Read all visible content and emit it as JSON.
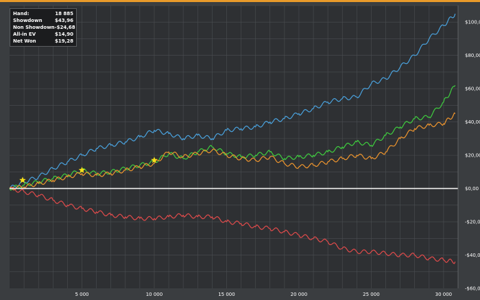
{
  "colors": {
    "background": "#3a3d40",
    "plot_background": "#2e3033",
    "grid": "#4b4e52",
    "top_border": "#e89a2a",
    "zero_line": "#f2f2f2",
    "net_won": "#4aa3df",
    "showdown": "#3fcf3f",
    "allin_ev": "#f0962e",
    "non_showdown": "#e24b4b",
    "star": "#f7e018"
  },
  "stats": [
    {
      "label": "Hand:",
      "value": "18 885"
    },
    {
      "label": "Showdown",
      "value": "$43,96"
    },
    {
      "label": "Non Showdown",
      "value": "-$24,68"
    },
    {
      "label": "All-in EV",
      "value": "$14,90"
    },
    {
      "label": "Net Won",
      "value": "$19,28"
    }
  ],
  "chart_data": {
    "type": "line",
    "xlim": [
      0,
      31000
    ],
    "ylim": [
      -60,
      110
    ],
    "x_ticks": [
      5000,
      10000,
      15000,
      20000,
      25000,
      30000
    ],
    "x_tick_labels": [
      "5 000",
      "10 000",
      "15 000",
      "20 000",
      "25 000",
      "30 000"
    ],
    "y_ticks": [
      100,
      80,
      60,
      40,
      20,
      0,
      -20,
      -40,
      -60
    ],
    "y_tick_labels": [
      "$100,00",
      "$80,00",
      "$60,00",
      "$40,00",
      "$20,00",
      "$0,00",
      "-$20,00",
      "-$40,00",
      "-$60,00"
    ],
    "grid": true,
    "legend": "none",
    "series": [
      {
        "color": "#4aa3df",
        "x": [
          0,
          1000,
          2000,
          3000,
          4000,
          5000,
          6000,
          7000,
          8000,
          9000,
          10000,
          11000,
          12000,
          13000,
          14000,
          15000,
          16000,
          17000,
          18000,
          19000,
          20000,
          21000,
          22000,
          23000,
          24000,
          25000,
          26000,
          27000,
          28000,
          29000,
          30000,
          30800
        ],
        "y": [
          0,
          4,
          7,
          12,
          16,
          20,
          24,
          26,
          28,
          31,
          35,
          33,
          30,
          32,
          30,
          35,
          36,
          37,
          40,
          42,
          45,
          48,
          52,
          54,
          55,
          63,
          66,
          73,
          80,
          90,
          98,
          105
        ]
      },
      {
        "color": "#3fcf3f",
        "x": [
          0,
          1000,
          2000,
          3000,
          4000,
          5000,
          6000,
          7000,
          8000,
          9000,
          10000,
          11000,
          12000,
          13000,
          14000,
          15000,
          16000,
          17000,
          18000,
          19000,
          20000,
          21000,
          22000,
          23000,
          24000,
          25000,
          26000,
          27000,
          28000,
          29000,
          30000,
          30800
        ],
        "y": [
          0,
          2,
          4,
          6,
          8,
          11,
          9,
          10,
          12,
          14,
          16,
          21,
          18,
          22,
          25,
          21,
          19,
          20,
          22,
          18,
          19,
          20,
          22,
          25,
          28,
          26,
          32,
          37,
          42,
          43,
          52,
          62
        ]
      },
      {
        "color": "#f0962e",
        "x": [
          0,
          1000,
          2000,
          3000,
          4000,
          5000,
          6000,
          7000,
          8000,
          9000,
          10000,
          11000,
          12000,
          13000,
          14000,
          15000,
          16000,
          17000,
          18000,
          19000,
          20000,
          21000,
          22000,
          23000,
          24000,
          25000,
          26000,
          27000,
          28000,
          29000,
          30000,
          30800
        ],
        "y": [
          0,
          1,
          3,
          5,
          7,
          9,
          8,
          9,
          11,
          13,
          15,
          22,
          19,
          21,
          23,
          20,
          18,
          17,
          19,
          15,
          13,
          14,
          16,
          18,
          20,
          18,
          22,
          30,
          36,
          38,
          39,
          45
        ]
      },
      {
        "color": "#e24b4b",
        "x": [
          0,
          1000,
          2000,
          3000,
          4000,
          5000,
          6000,
          7000,
          8000,
          9000,
          10000,
          11000,
          12000,
          13000,
          14000,
          15000,
          16000,
          17000,
          18000,
          19000,
          20000,
          21000,
          22000,
          23000,
          24000,
          25000,
          26000,
          27000,
          28000,
          29000,
          30000,
          30800
        ],
        "y": [
          0,
          -2,
          -4,
          -7,
          -10,
          -12,
          -14,
          -16,
          -17,
          -18,
          -18,
          -17,
          -16,
          -17,
          -17,
          -20,
          -21,
          -23,
          -24,
          -26,
          -28,
          -30,
          -32,
          -36,
          -38,
          -38,
          -39,
          -40,
          -40,
          -42,
          -43,
          -44
        ]
      }
    ],
    "markers": [
      {
        "x": 900,
        "y": 5
      },
      {
        "x": 5000,
        "y": 11
      },
      {
        "x": 10000,
        "y": 17
      }
    ]
  }
}
